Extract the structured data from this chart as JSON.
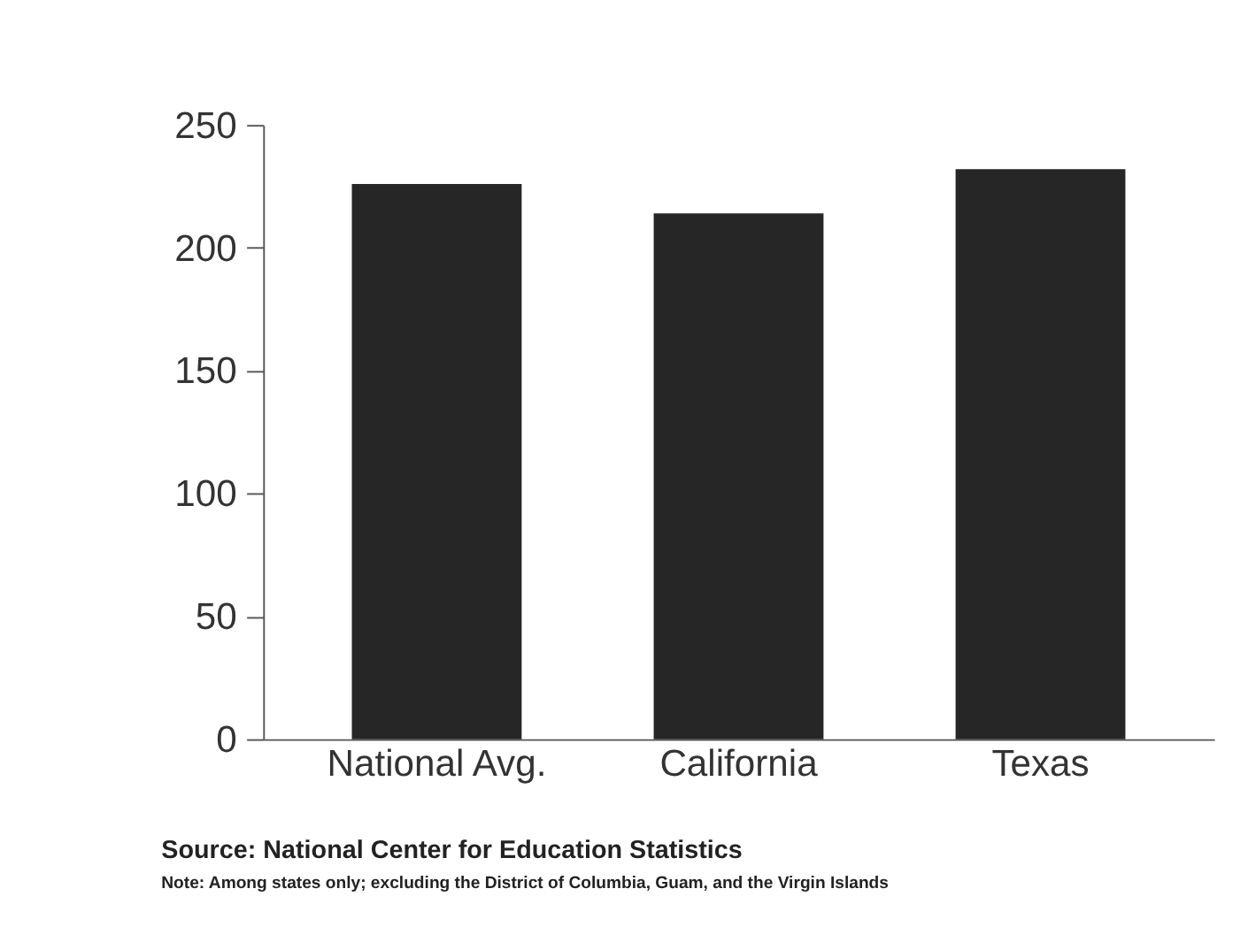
{
  "chart_data": {
    "type": "bar",
    "categories": [
      "National Avg.",
      "California",
      "Texas"
    ],
    "values": [
      226,
      214,
      232
    ],
    "color": "#262626",
    "ylim": [
      0,
      250
    ],
    "yticks": [
      0,
      50,
      100,
      150,
      200,
      250
    ],
    "grid": false,
    "annotations": [
      "Source: National Center for Education Statistics",
      "Note: Among states only; excluding the District of Columbia, Guam, and the Virgin Islands"
    ]
  }
}
